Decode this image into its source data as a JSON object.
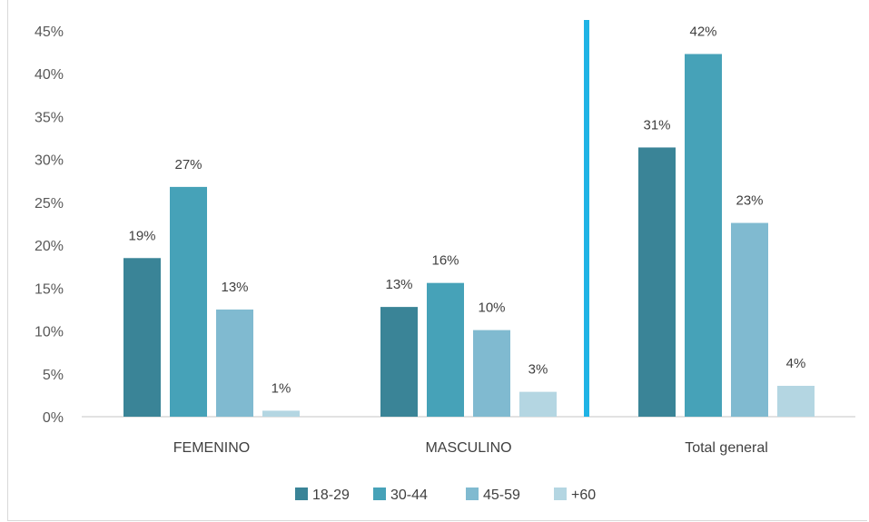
{
  "chart_data": {
    "type": "bar",
    "title": "",
    "categories": [
      "FEMENINO",
      "MASCULINO",
      "Total general"
    ],
    "series": [
      {
        "name": "18-29",
        "color": "#3a8497",
        "values": [
          19,
          13,
          31
        ]
      },
      {
        "name": "30-44",
        "color": "#46a2b8",
        "values": [
          27,
          16,
          42
        ]
      },
      {
        "name": "45-59",
        "color": "#80bad0",
        "values": [
          13,
          10,
          23
        ]
      },
      {
        "name": "+60",
        "color": "#b4d6e2",
        "values": [
          1,
          3,
          4
        ]
      }
    ],
    "plotted_values": [
      [
        18.5,
        12.8,
        31.4
      ],
      [
        26.8,
        15.6,
        42.3
      ],
      [
        12.5,
        10.1,
        22.6
      ],
      [
        0.7,
        2.9,
        3.6
      ]
    ],
    "ylim": [
      0,
      45
    ],
    "yticks": [
      "0%",
      "5%",
      "10%",
      "15%",
      "20%",
      "25%",
      "30%",
      "35%",
      "40%",
      "45%"
    ],
    "y_tick_values": [
      0,
      5,
      10,
      15,
      20,
      25,
      30,
      35,
      40,
      45
    ],
    "grid": false,
    "legend_position": "bottom",
    "xlabel": "",
    "ylabel": "",
    "separator_color": "#1fb3e5"
  }
}
